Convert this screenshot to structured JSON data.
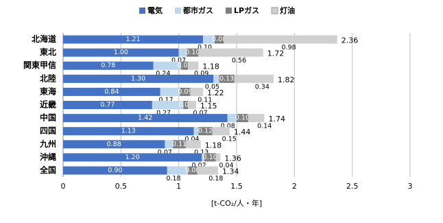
{
  "chart_data": {
    "type": "stacked-barh",
    "categories": [
      "北海道",
      "東北",
      "関東甲信",
      "北陸",
      "東海",
      "近畿",
      "中国",
      "四国",
      "九州",
      "沖縄",
      "全国"
    ],
    "series": [
      {
        "name": "電気",
        "color": "#4472c4",
        "values": [
          1.21,
          1.0,
          0.78,
          1.3,
          0.84,
          0.77,
          1.42,
          1.13,
          0.88,
          1.2,
          0.9
        ],
        "value_labels": [
          "1.21",
          "1.00",
          "0.78",
          "1.30",
          "0.84",
          "0.77",
          "1.42",
          "1.13",
          "0.88",
          "1.20",
          "0.90"
        ]
      },
      {
        "name": "都市ガス",
        "color": "#bdd7ee",
        "values": [
          0.1,
          0.07,
          0.24,
          0.05,
          0.17,
          0.27,
          0.08,
          0.04,
          0.07,
          0.02,
          0.18
        ],
        "value_labels": [
          "0.10",
          "0.07",
          "0.24",
          "0.05",
          "0.17",
          "0.27",
          "0.08",
          "0.04",
          "0.07",
          "0.02",
          "0.18"
        ]
      },
      {
        "name": "LPガス",
        "color": "#7f7f7f",
        "values": [
          0.08,
          0.1,
          0.06,
          0.13,
          0.09,
          0.04,
          0.1,
          0.12,
          0.11,
          0.1,
          0.08
        ],
        "value_labels": [
          "0.08",
          "0.10",
          "0.06",
          "0.13",
          "0.09",
          "0.04",
          "0.10",
          "0.12",
          "0.11",
          "0.10",
          "0.08"
        ]
      },
      {
        "name": "灯油",
        "color": "#d0d0d0",
        "values": [
          0.98,
          0.56,
          0.09,
          0.34,
          0.11,
          0.07,
          0.14,
          0.15,
          0.13,
          0.04,
          0.18
        ],
        "value_labels": [
          "0.98",
          "0.56",
          "0.09",
          "0.34",
          "0.11",
          "0.07",
          "0.14",
          "0.15",
          "0.13",
          "0.04",
          "0.18"
        ]
      }
    ],
    "totals": [
      2.36,
      1.72,
      1.18,
      1.82,
      1.22,
      1.15,
      1.74,
      1.44,
      1.18,
      1.36,
      1.34
    ],
    "xlim": [
      0,
      3
    ],
    "xticks": [
      0,
      0.5,
      1,
      1.5,
      2,
      2.5,
      3
    ],
    "grid": true,
    "xlabel": "[t-CO₂/人・年]"
  }
}
